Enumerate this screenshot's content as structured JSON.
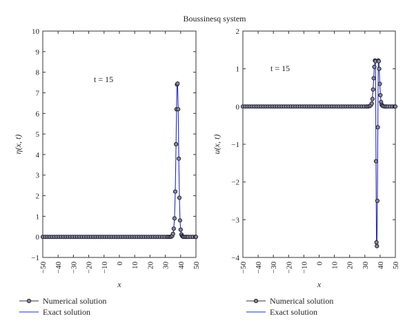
{
  "figure": {
    "title": "Boussinesq system"
  },
  "chart_data": [
    {
      "type": "line",
      "xlabel": "x",
      "ylabel": "η(x, t)",
      "annotation": "t = 15",
      "xlim": [
        -50,
        50
      ],
      "ylim": [
        -1,
        10
      ],
      "xticks": [
        "−50",
        "−40",
        "−30",
        "−20",
        "−10",
        "0",
        "10",
        "20",
        "30",
        "40",
        "50"
      ],
      "yticks": [
        "−1",
        "0",
        "1",
        "2",
        "3",
        "4",
        "5",
        "6",
        "7",
        "8",
        "9",
        "10"
      ],
      "legend": [
        "Numerical solution",
        "Exact solution"
      ],
      "series": [
        {
          "name": "Numerical solution",
          "style": "markers",
          "x": [
            -50,
            -48.5,
            -47,
            -45.5,
            -44,
            -42.5,
            -41,
            -39.5,
            -38,
            -36.5,
            -35,
            -33.5,
            -32,
            -30.5,
            -29,
            -27.5,
            -26,
            -24.5,
            -23,
            -21.5,
            -20,
            -18.5,
            -17,
            -15.5,
            -14,
            -12.5,
            -11,
            -9.5,
            -8,
            -6.5,
            -5,
            -3.5,
            -2,
            -0.5,
            1,
            2.5,
            4,
            5.5,
            7,
            8.5,
            10,
            11.5,
            13,
            14.5,
            16,
            17.5,
            19,
            20.5,
            22,
            23.5,
            25,
            26.5,
            28,
            29.5,
            31,
            32,
            33,
            33.8,
            34.5,
            35,
            35.5,
            36,
            36.5,
            37,
            37.3,
            37.6,
            38,
            38.4,
            38.8,
            39.2,
            39.6,
            40,
            40.5,
            41,
            41.5,
            42,
            43,
            44,
            45,
            46.5,
            48,
            49.5,
            50
          ],
          "y": [
            0,
            0,
            0,
            0,
            0,
            0,
            0,
            0,
            0,
            0,
            0,
            0,
            0,
            0,
            0,
            0,
            0,
            0,
            0,
            0,
            0,
            0,
            0,
            0,
            0,
            0,
            0,
            0,
            0,
            0,
            0,
            0,
            0,
            0,
            0,
            0,
            0,
            0,
            0,
            0,
            0,
            0,
            0,
            0,
            0,
            0,
            0,
            0,
            0,
            0,
            0,
            0,
            0,
            0,
            0,
            0,
            0,
            0.01,
            0.05,
            0.15,
            0.4,
            0.9,
            2.2,
            4.5,
            6.2,
            7.4,
            7.45,
            6.2,
            3.8,
            1.9,
            0.8,
            0.35,
            0.12,
            0.04,
            0.01,
            0,
            0,
            0,
            0,
            0,
            0,
            0,
            0
          ]
        },
        {
          "name": "Exact solution",
          "style": "line",
          "x": [
            -50,
            30,
            33,
            34.5,
            35.3,
            36,
            36.5,
            37,
            37.4,
            37.7,
            38,
            38.4,
            38.8,
            39.2,
            39.6,
            40,
            40.5,
            41,
            42,
            44,
            50
          ],
          "y": [
            0,
            0,
            0,
            0.05,
            0.2,
            0.9,
            2.2,
            4.5,
            6.6,
            7.5,
            7.45,
            6.2,
            3.8,
            1.9,
            0.8,
            0.35,
            0.12,
            0.04,
            0.005,
            0,
            0
          ]
        }
      ]
    },
    {
      "type": "line",
      "xlabel": "x",
      "ylabel": "u(x, t)",
      "annotation": "t = 15",
      "xlim": [
        -50,
        50
      ],
      "ylim": [
        -4,
        2
      ],
      "xticks": [
        "−50",
        "−40",
        "−30",
        "−20",
        "−10",
        "0",
        "10",
        "20",
        "30",
        "40",
        "50"
      ],
      "yticks": [
        "−4",
        "−3",
        "−2",
        "−1",
        "0",
        "1",
        "2"
      ],
      "legend": [
        "Numerical solution",
        "Exact solution"
      ],
      "series": [
        {
          "name": "Numerical solution",
          "style": "markers",
          "x": [
            -50,
            -48.5,
            -47,
            -45.5,
            -44,
            -42.5,
            -41,
            -39.5,
            -38,
            -36.5,
            -35,
            -33.5,
            -32,
            -30.5,
            -29,
            -27.5,
            -26,
            -24.5,
            -23,
            -21.5,
            -20,
            -18.5,
            -17,
            -15.5,
            -14,
            -12.5,
            -11,
            -9.5,
            -8,
            -6.5,
            -5,
            -3.5,
            -2,
            -0.5,
            1,
            2.5,
            4,
            5.5,
            7,
            8.5,
            10,
            11.5,
            13,
            14.5,
            16,
            17.5,
            19,
            20.5,
            22,
            23.5,
            25,
            26.5,
            28,
            29.5,
            31,
            32,
            33,
            33.8,
            34.5,
            35,
            35.4,
            35.8,
            36.2,
            36.6,
            37,
            37.3,
            37.6,
            37.9,
            38.2,
            38.5,
            38.8,
            39.1,
            39.4,
            39.8,
            40.2,
            40.6,
            41,
            41.5,
            42,
            43,
            44,
            45,
            46.5,
            48,
            49.5,
            50
          ],
          "y": [
            0,
            0,
            0,
            0,
            0,
            0,
            0,
            0,
            0,
            0,
            0,
            0,
            0,
            0,
            0,
            0,
            0,
            0,
            0,
            0,
            0,
            0,
            0,
            0,
            0,
            0,
            0,
            0,
            0,
            0,
            0,
            0,
            0,
            0,
            0,
            0,
            0,
            0,
            0,
            0,
            0,
            0,
            0,
            0,
            0,
            0,
            0,
            0,
            0,
            0,
            0,
            0,
            0,
            0,
            0,
            0,
            0.01,
            0.03,
            0.08,
            0.2,
            0.45,
            0.75,
            1.05,
            1.22,
            1.2,
            -1.45,
            -3.6,
            -3.7,
            -2.5,
            -0.55,
            1.22,
            1.2,
            1.0,
            0.6,
            0.3,
            0.12,
            0.05,
            0.02,
            0.01,
            0,
            0,
            0,
            0,
            0,
            0,
            0
          ]
        },
        {
          "name": "Exact solution",
          "style": "line",
          "x": [
            -50,
            30,
            33,
            34.5,
            35.4,
            35.8,
            36.2,
            36.6,
            37,
            37.3,
            37.6,
            37.9,
            38.2,
            38.5,
            38.8,
            39.1,
            39.4,
            39.8,
            40.2,
            40.6,
            41,
            42,
            44,
            50
          ],
          "y": [
            0,
            0,
            0,
            0.08,
            0.45,
            0.75,
            1.05,
            1.22,
            1.2,
            -1.45,
            -3.6,
            -3.7,
            -2.5,
            -0.55,
            1.22,
            1.2,
            1.0,
            0.6,
            0.3,
            0.12,
            0.05,
            0.01,
            0,
            0
          ]
        }
      ]
    }
  ]
}
